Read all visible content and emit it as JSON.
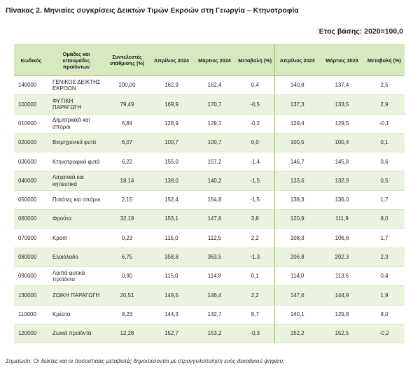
{
  "title": "Πίνακας 2. Μηνιαίες συγκρίσεις Δεικτών Τιμών Εκροών στη Γεωργία – Κτηνοτροφία",
  "base_year": "Έτος βάσης: 2020=100,0",
  "note": "Σημείωση: Οι δείκτες και οι ποσοστιαίες μεταβολές δημοσιεύονται με στρογγυλοποίηση ενός δεκαδικού ψηφίου.",
  "headers": {
    "code": "Κωδικός",
    "groups": "Ομάδες και υποομάδες προϊόντων",
    "weight": "Συντελεστές στάθμισης (%)",
    "apr2024": "Απρίλιος 2024",
    "mar2024": "Μάρτιος 2024",
    "chg2024": "Μεταβολή (%)",
    "apr2023": "Απρίλιος 2023",
    "mar2023": "Μάρτιος 2023",
    "chg2023": "Μεταβολή (%)"
  },
  "rows": [
    {
      "code": "140000",
      "name": "ΓΕΝΙΚΟΣ ΔΕΙΚΤΗΣ ΕΚΡΟΩΝ",
      "weight": "100,00",
      "apr2024": "162,9",
      "mar2024": "162,4",
      "chg2024": "0,4",
      "apr2023": "140,8",
      "mar2023": "137,4",
      "chg2023": "2,5"
    },
    {
      "code": "100000",
      "name": "ΦΥΤΙΚΗ ΠΑΡΑΓΩΓΗ",
      "weight": "79,49",
      "apr2024": "169,9",
      "mar2024": "170,7",
      "chg2024": "-0,5",
      "apr2023": "137,3",
      "mar2023": "133,5",
      "chg2023": "2,9"
    },
    {
      "code": "010000",
      "name": "Δημητριακά και σπόροι",
      "weight": "6,84",
      "apr2024": "128,9",
      "mar2024": "129,1",
      "chg2024": "-0,2",
      "apr2023": "129,4",
      "mar2023": "129,5",
      "chg2023": "-0,1"
    },
    {
      "code": "020000",
      "name": "Βιομηχανικά φυτά",
      "weight": "6,07",
      "apr2024": "100,7",
      "mar2024": "100,7",
      "chg2024": "0,0",
      "apr2023": "100,5",
      "mar2023": "100,4",
      "chg2023": "0,1"
    },
    {
      "code": "030000",
      "name": "Κτηνοτροφικά φυτά",
      "weight": "6,22",
      "apr2024": "155,0",
      "mar2024": "157,2",
      "chg2024": "-1,4",
      "apr2023": "146,7",
      "mar2023": "145,8",
      "chg2023": "0,6"
    },
    {
      "code": "040000",
      "name": "Λαχανικά και κηπευτικά",
      "weight": "18,14",
      "apr2024": "138,0",
      "mar2024": "140,2",
      "chg2024": "-1,5",
      "apr2023": "133,6",
      "mar2023": "132,9",
      "chg2023": "0,5"
    },
    {
      "code": "050000",
      "name": "Πατάτες και σπόροι",
      "weight": "2,15",
      "apr2024": "152,4",
      "mar2024": "154,8",
      "chg2024": "-1,5",
      "apr2023": "138,3",
      "mar2023": "136,0",
      "chg2023": "1,7"
    },
    {
      "code": "060000",
      "name": "Φρούτα",
      "weight": "32,19",
      "apr2024": "153,1",
      "mar2024": "147,6",
      "chg2024": "3,8",
      "apr2023": "120,9",
      "mar2023": "111,9",
      "chg2023": "8,0"
    },
    {
      "code": "070000",
      "name": "Κρασί",
      "weight": "0,23",
      "apr2024": "115,0",
      "mar2024": "112,5",
      "chg2024": "2,2",
      "apr2023": "108,3",
      "mar2023": "106,6",
      "chg2023": "1,7"
    },
    {
      "code": "080000",
      "name": "Ελαιόλαδο",
      "weight": "6,75",
      "apr2024": "358,8",
      "mar2024": "363,5",
      "chg2024": "-1,3",
      "apr2023": "206,8",
      "mar2023": "202,3",
      "chg2023": "2,3"
    },
    {
      "code": "090000",
      "name": "Λοιπά φυτικά προϊόντα",
      "weight": "0,90",
      "apr2024": "115,0",
      "mar2024": "114,8",
      "chg2024": "0,1",
      "apr2023": "114,0",
      "mar2023": "113,6",
      "chg2023": "0,4"
    },
    {
      "code": "130000",
      "name": "ΖΩΙΚΗ ΠΑΡΑΓΩΓΗ",
      "weight": "20,51",
      "apr2024": "149,5",
      "mar2024": "146,4",
      "chg2024": "2,2",
      "apr2023": "147,6",
      "mar2023": "144,9",
      "chg2023": "1,9"
    },
    {
      "code": "110000",
      "name": "Κρέατα",
      "weight": "8,23",
      "apr2024": "144,3",
      "mar2024": "132,7",
      "chg2024": "8,7",
      "apr2023": "140,1",
      "mar2023": "129,8",
      "chg2023": "8,0"
    },
    {
      "code": "120000",
      "name": "Ζωικά προϊόντα",
      "weight": "12,28",
      "apr2024": "152,7",
      "mar2024": "153,2",
      "chg2024": "-0,3",
      "apr2023": "152,2",
      "mar2023": "152,5",
      "chg2023": "-0,2"
    }
  ]
}
